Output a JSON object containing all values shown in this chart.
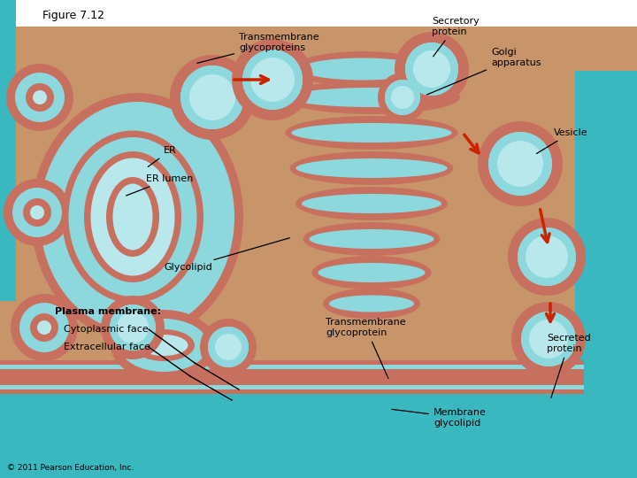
{
  "title": "Figure 7.12",
  "copyright": "© 2011 Pearson Education, Inc.",
  "bg_tan": "#c8956a",
  "bg_tan2": "#d4a07a",
  "teal_dark": "#3aacb4",
  "teal_med": "#5ec0c8",
  "teal_light": "#8dd8dc",
  "teal_pale": "#b8e8ec",
  "salmon": "#c87060",
  "salmon_light": "#e0907880",
  "white": "#ffffff",
  "black": "#000000",
  "red_arrow": "#cc2200",
  "labels": {
    "title": "Figure 7.12",
    "transmembrane_glycoproteins": "Transmembrane\nglycoproteins",
    "secretory_protein": "Secretory\nprotein",
    "golgi_apparatus": "Golgi\napparatus",
    "vesicle": "Vesicle",
    "er": "ER",
    "er_lumen": "ER lumen",
    "glycolipid": "Glycolipid",
    "plasma_membrane": "Plasma membrane:",
    "cytoplasmic_face": "Cytoplasmic face",
    "extracellular_face": "Extracellular face",
    "transmembrane_glycoprotein": "Transmembrane\nglycoprotein",
    "secreted_protein": "Secreted\nprotein",
    "membrane_glycolipid": "Membrane\nglycolipid",
    "copyright": "© 2011 Pearson Education, Inc."
  }
}
